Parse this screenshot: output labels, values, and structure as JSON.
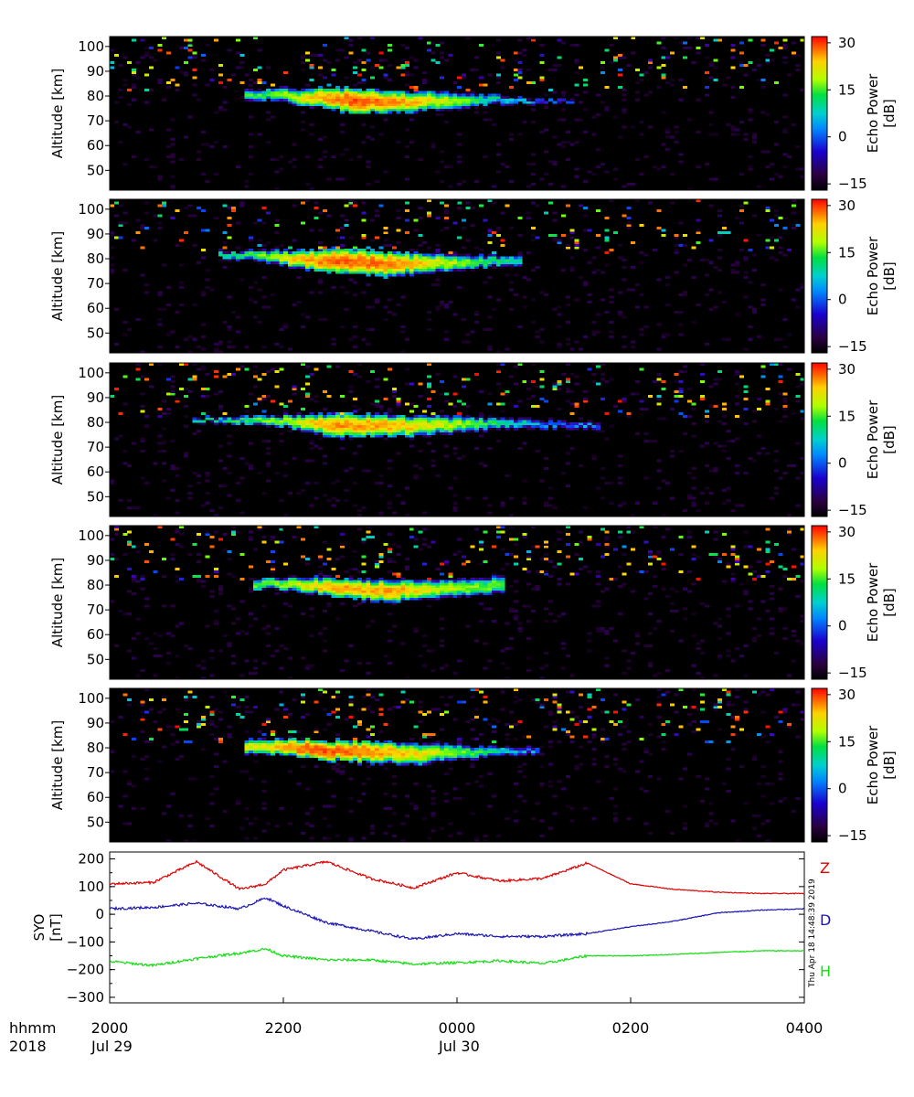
{
  "chart_data": [
    {
      "type": "heatmap",
      "panel": 1,
      "ylabel": "Altitude [km]",
      "yticks": [
        50,
        60,
        70,
        80,
        90,
        100
      ],
      "ylim": [
        42,
        104
      ],
      "xlim_hours": [
        20,
        28
      ],
      "colorbar": {
        "label_line1": "Echo Power",
        "label_line2": "[dB]",
        "ticks": [
          30,
          15,
          0,
          -15
        ],
        "range": [
          -17,
          32
        ]
      },
      "echo_layer": [
        {
          "hour": 21.8,
          "center_km": 80.5,
          "half_width_km": 2.0,
          "peak_db": 8
        },
        {
          "hour": 22.3,
          "center_km": 79.5,
          "half_width_km": 3.0,
          "peak_db": 18
        },
        {
          "hour": 22.8,
          "center_km": 78.0,
          "half_width_km": 4.0,
          "peak_db": 27
        },
        {
          "hour": 23.3,
          "center_km": 77.5,
          "half_width_km": 3.5,
          "peak_db": 22
        },
        {
          "hour": 23.9,
          "center_km": 78.0,
          "half_width_km": 3.0,
          "peak_db": 14
        },
        {
          "hour": 24.4,
          "center_km": 78.5,
          "half_width_km": 2.0,
          "peak_db": 4
        },
        {
          "hour": 25.1,
          "center_km": 78.0,
          "half_width_km": 1.0,
          "peak_db": -4
        }
      ]
    },
    {
      "type": "heatmap",
      "panel": 2,
      "ylabel": "Altitude [km]",
      "yticks": [
        50,
        60,
        70,
        80,
        90,
        100
      ],
      "ylim": [
        42,
        104
      ],
      "xlim_hours": [
        20,
        28
      ],
      "colorbar": {
        "label_line1": "Echo Power",
        "label_line2": "[dB]",
        "ticks": [
          30,
          15,
          0,
          -15
        ],
        "range": [
          -17,
          32
        ]
      },
      "echo_layer": [
        {
          "hour": 21.5,
          "center_km": 81.5,
          "half_width_km": 1.5,
          "peak_db": 6
        },
        {
          "hour": 22.0,
          "center_km": 80.5,
          "half_width_km": 2.5,
          "peak_db": 16
        },
        {
          "hour": 22.6,
          "center_km": 79.0,
          "half_width_km": 4.0,
          "peak_db": 26
        },
        {
          "hour": 23.2,
          "center_km": 78.0,
          "half_width_km": 4.0,
          "peak_db": 24
        },
        {
          "hour": 23.8,
          "center_km": 78.5,
          "half_width_km": 3.0,
          "peak_db": 15
        },
        {
          "hour": 24.5,
          "center_km": 79.0,
          "half_width_km": 2.0,
          "peak_db": 6
        }
      ]
    },
    {
      "type": "heatmap",
      "panel": 3,
      "ylabel": "Altitude [km]",
      "yticks": [
        50,
        60,
        70,
        80,
        90,
        100
      ],
      "ylim": [
        42,
        104
      ],
      "xlim_hours": [
        20,
        28
      ],
      "colorbar": {
        "label_line1": "Echo Power",
        "label_line2": "[dB]",
        "ticks": [
          30,
          15,
          0,
          -15
        ],
        "range": [
          -17,
          32
        ]
      },
      "echo_layer": [
        {
          "hour": 21.2,
          "center_km": 81.0,
          "half_width_km": 1.0,
          "peak_db": 5
        },
        {
          "hour": 22.0,
          "center_km": 80.5,
          "half_width_km": 2.0,
          "peak_db": 12
        },
        {
          "hour": 22.6,
          "center_km": 79.0,
          "half_width_km": 4.0,
          "peak_db": 22
        },
        {
          "hour": 23.3,
          "center_km": 78.5,
          "half_width_km": 3.5,
          "peak_db": 20
        },
        {
          "hour": 23.9,
          "center_km": 79.0,
          "half_width_km": 3.0,
          "peak_db": 14
        },
        {
          "hour": 24.6,
          "center_km": 79.5,
          "half_width_km": 2.0,
          "peak_db": 4
        },
        {
          "hour": 25.4,
          "center_km": 79.0,
          "half_width_km": 1.5,
          "peak_db": -2
        }
      ]
    },
    {
      "type": "heatmap",
      "panel": 4,
      "ylabel": "Altitude [km]",
      "yticks": [
        50,
        60,
        70,
        80,
        90,
        100
      ],
      "ylim": [
        42,
        104
      ],
      "xlim_hours": [
        20,
        28
      ],
      "colorbar": {
        "label_line1": "Echo Power",
        "label_line2": "[dB]",
        "ticks": [
          30,
          15,
          0,
          -15
        ],
        "range": [
          -17,
          32
        ]
      },
      "echo_layer": [
        {
          "hour": 21.9,
          "center_km": 80.5,
          "half_width_km": 2.0,
          "peak_db": 10
        },
        {
          "hour": 22.5,
          "center_km": 79.5,
          "half_width_km": 3.0,
          "peak_db": 20
        },
        {
          "hour": 23.2,
          "center_km": 77.5,
          "half_width_km": 3.5,
          "peak_db": 22
        },
        {
          "hour": 23.8,
          "center_km": 78.5,
          "half_width_km": 3.0,
          "peak_db": 14
        },
        {
          "hour": 24.3,
          "center_km": 80.0,
          "half_width_km": 3.0,
          "peak_db": 10
        }
      ]
    },
    {
      "type": "heatmap",
      "panel": 5,
      "ylabel": "Altitude [km]",
      "yticks": [
        50,
        60,
        70,
        80,
        90,
        100
      ],
      "ylim": [
        42,
        104
      ],
      "xlim_hours": [
        20,
        28
      ],
      "colorbar": {
        "label_line1": "Echo Power",
        "label_line2": "[dB]",
        "ticks": [
          30,
          15,
          0,
          -15
        ],
        "range": [
          -17,
          32
        ]
      },
      "echo_layer": [
        {
          "hour": 21.8,
          "center_km": 80.5,
          "half_width_km": 2.5,
          "peak_db": 16
        },
        {
          "hour": 22.3,
          "center_km": 79.5,
          "half_width_km": 3.0,
          "peak_db": 27
        },
        {
          "hour": 22.9,
          "center_km": 78.5,
          "half_width_km": 3.5,
          "peak_db": 24
        },
        {
          "hour": 23.5,
          "center_km": 77.5,
          "half_width_km": 3.5,
          "peak_db": 18
        },
        {
          "hour": 24.1,
          "center_km": 78.0,
          "half_width_km": 2.5,
          "peak_db": 10
        },
        {
          "hour": 24.7,
          "center_km": 79.0,
          "half_width_km": 1.5,
          "peak_db": 0
        }
      ]
    },
    {
      "type": "line",
      "panel": 6,
      "ylabel_line1": "SYO",
      "ylabel_line2": "[nT]",
      "yticks": [
        200,
        100,
        0,
        -100,
        -200,
        -300
      ],
      "ylim": [
        -320,
        225
      ],
      "xlim_hours": [
        20,
        28
      ],
      "x": [
        20.0,
        20.5,
        21.0,
        21.5,
        21.8,
        22.0,
        22.5,
        23.0,
        23.5,
        24.0,
        24.5,
        25.0,
        25.5,
        26.0,
        26.5,
        27.0,
        27.5,
        28.0
      ],
      "series": [
        {
          "name": "Z",
          "color": "#dd0000",
          "values": [
            110,
            115,
            190,
            90,
            110,
            160,
            190,
            130,
            95,
            150,
            120,
            130,
            185,
            110,
            90,
            80,
            75,
            75
          ]
        },
        {
          "name": "D",
          "color": "#1a14b0",
          "values": [
            20,
            25,
            40,
            20,
            60,
            30,
            -30,
            -60,
            -90,
            -70,
            -80,
            -80,
            -70,
            -45,
            -25,
            5,
            15,
            20
          ]
        },
        {
          "name": "H",
          "color": "#11dd11",
          "values": [
            -170,
            -185,
            -160,
            -140,
            -125,
            -150,
            -165,
            -165,
            -180,
            -175,
            -168,
            -178,
            -150,
            -150,
            -145,
            -138,
            -132,
            -132
          ]
        }
      ]
    }
  ],
  "xaxis": {
    "row1_label": "hhmm",
    "row2_label": "2018",
    "ticks": [
      {
        "hour": 20,
        "time": "2000",
        "date": "Jul 29"
      },
      {
        "hour": 22,
        "time": "2200",
        "date": ""
      },
      {
        "hour": 24,
        "time": "0000",
        "date": "Jul 30"
      },
      {
        "hour": 26,
        "time": "0200",
        "date": ""
      },
      {
        "hour": 28,
        "time": "0400",
        "date": ""
      }
    ]
  },
  "timestamp": "Thu Apr 18 14:48:39 2019",
  "colors": {
    "background": "#000000",
    "frame": "#000000"
  }
}
